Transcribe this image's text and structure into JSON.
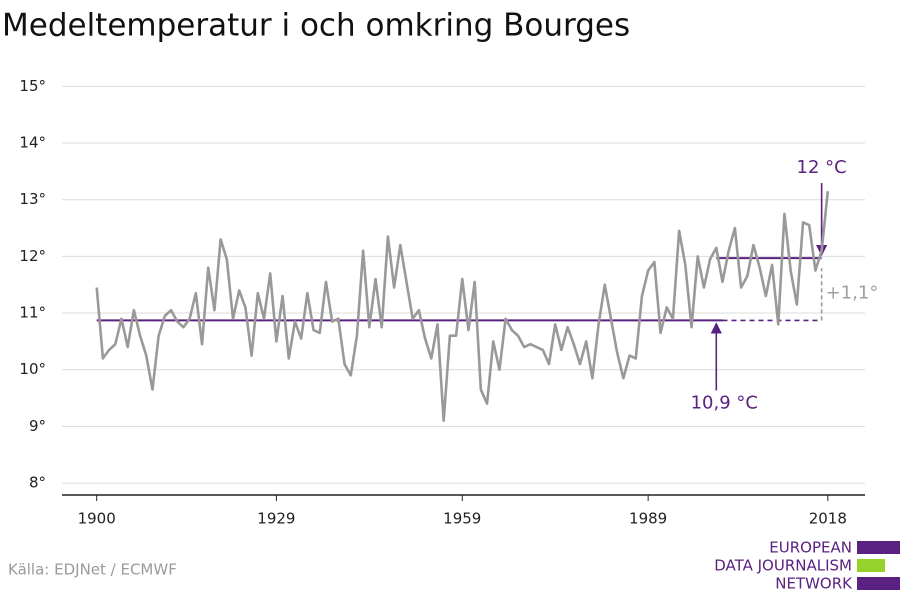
{
  "chart_data": {
    "type": "line",
    "title": "Medeltemperatur i och omkring Bourges",
    "source": "Källa: EDJNet / ECMWF",
    "logo": [
      "EUROPEAN",
      "DATA JOURNALISM",
      "NETWORK"
    ],
    "x": [
      1900,
      1901,
      1902,
      1903,
      1904,
      1905,
      1906,
      1907,
      1908,
      1909,
      1910,
      1911,
      1912,
      1913,
      1914,
      1915,
      1916,
      1917,
      1918,
      1919,
      1920,
      1921,
      1922,
      1923,
      1924,
      1925,
      1926,
      1927,
      1928,
      1929,
      1930,
      1931,
      1932,
      1933,
      1934,
      1935,
      1936,
      1937,
      1938,
      1939,
      1940,
      1941,
      1942,
      1943,
      1944,
      1945,
      1946,
      1947,
      1948,
      1949,
      1950,
      1951,
      1952,
      1953,
      1954,
      1955,
      1956,
      1957,
      1958,
      1959,
      1960,
      1961,
      1962,
      1963,
      1964,
      1965,
      1966,
      1967,
      1968,
      1969,
      1970,
      1971,
      1972,
      1973,
      1974,
      1975,
      1976,
      1977,
      1978,
      1979,
      1980,
      1981,
      1982,
      1983,
      1984,
      1985,
      1986,
      1987,
      1988,
      1989,
      1990,
      1991,
      1992,
      1993,
      1994,
      1995,
      1996,
      1997,
      1998,
      1999,
      2000,
      2001,
      2002,
      2003,
      2004,
      2005,
      2006,
      2007,
      2008,
      2009,
      2010,
      2011,
      2012,
      2013,
      2014,
      2015,
      2016,
      2017,
      2018
    ],
    "series": [
      {
        "color": "#999999",
        "values": [
          11.45,
          10.2,
          10.35,
          10.45,
          10.9,
          10.4,
          11.05,
          10.6,
          10.25,
          9.65,
          10.6,
          10.95,
          11.05,
          10.85,
          10.75,
          10.9,
          11.35,
          10.45,
          11.8,
          11.05,
          12.3,
          11.95,
          10.9,
          11.4,
          11.1,
          10.25,
          11.35,
          10.9,
          11.7,
          10.5,
          11.3,
          10.2,
          10.85,
          10.55,
          11.35,
          10.7,
          10.65,
          11.55,
          10.85,
          10.9,
          10.1,
          9.9,
          10.6,
          12.1,
          10.75,
          11.6,
          10.75,
          12.35,
          11.45,
          12.2,
          11.55,
          10.9,
          11.05,
          10.55,
          10.2,
          10.8,
          9.1,
          10.6,
          10.6,
          11.6,
          10.7,
          11.55,
          9.65,
          9.4,
          10.5,
          10.0,
          10.9,
          10.7,
          10.6,
          10.4,
          10.45,
          10.4,
          10.35,
          10.1,
          10.8,
          10.35,
          10.75,
          10.45,
          10.1,
          10.5,
          9.85,
          10.8,
          11.5,
          10.9,
          10.3,
          9.85,
          10.25,
          10.2,
          11.3,
          11.75,
          11.9,
          10.65,
          11.1,
          10.9,
          12.45,
          11.85,
          10.75,
          12.0,
          11.45,
          11.95,
          12.15,
          11.55,
          12.1,
          12.5,
          11.45,
          11.65,
          12.2,
          11.8,
          11.3,
          11.85,
          10.8,
          12.75,
          11.75,
          11.15,
          12.6,
          12.55,
          11.75,
          12.1,
          13.15
        ]
      }
    ],
    "references": [
      {
        "label": "10,9 °C",
        "value": 10.87,
        "x": [
          1900,
          2001
        ],
        "color": "#5b2182"
      },
      {
        "label": "12 °C",
        "value": 11.97,
        "x": [
          2000,
          2017
        ],
        "color": "#5b2182"
      }
    ],
    "difference_label": "+1,1°",
    "xlim": [
      1894.4,
      2024
    ],
    "xticks": [
      1900,
      1929,
      1959,
      1989,
      2018
    ],
    "ylim": [
      7.79,
      15.2
    ],
    "yticks": [
      {
        "value": 8,
        "label": "8°"
      },
      {
        "value": 9,
        "label": "9°"
      },
      {
        "value": 10,
        "label": "10°"
      },
      {
        "value": 11,
        "label": "11°"
      },
      {
        "value": 12,
        "label": "12°"
      },
      {
        "value": 13,
        "label": "13°"
      },
      {
        "value": 14,
        "label": "14°"
      },
      {
        "value": 15,
        "label": "15°"
      }
    ],
    "grid": true
  }
}
